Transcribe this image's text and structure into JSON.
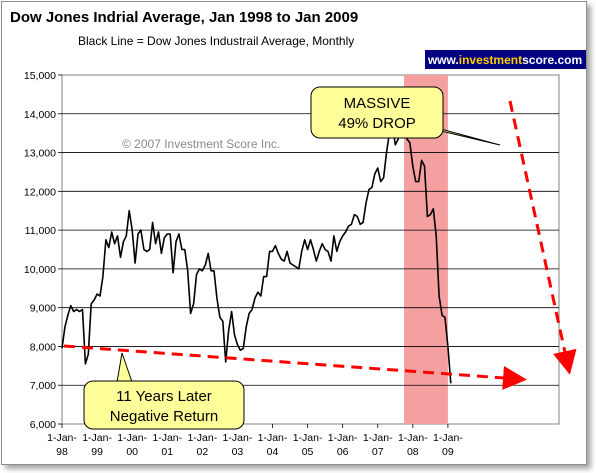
{
  "chart_data": {
    "type": "line",
    "title": "Dow Jones Indrial Average, Jan 1998 to Jan 2009",
    "subtitle": "Black Line = Dow Jones Industrail Average, Monthly",
    "xlabel": "",
    "ylabel": "",
    "ylim": [
      6000,
      15000
    ],
    "y_ticks": [
      "6,000",
      "7,000",
      "8,000",
      "9,000",
      "10,000",
      "11,000",
      "12,000",
      "13,000",
      "14,000",
      "15,000"
    ],
    "x_tick_labels": [
      [
        "1-Jan-",
        "98"
      ],
      [
        "1-Jan-",
        "99"
      ],
      [
        "1-Jan-",
        "00"
      ],
      [
        "1-Jan-",
        "01"
      ],
      [
        "1-Jan-",
        "02"
      ],
      [
        "1-Jan-",
        "03"
      ],
      [
        "1-Jan-",
        "04"
      ],
      [
        "1-Jan-",
        "05"
      ],
      [
        "1-Jan-",
        "06"
      ],
      [
        "1-Jan-",
        "07"
      ],
      [
        "1-Jan-",
        "08"
      ],
      [
        "1-Jan-",
        "09"
      ]
    ],
    "grid": "horizontal",
    "series": [
      {
        "color": "#000000",
        "x_start": "1998-01",
        "x_step": "month",
        "values": [
          7950,
          8500,
          8800,
          9050,
          8900,
          8950,
          8900,
          8950,
          7550,
          7800,
          9100,
          9200,
          9350,
          9300,
          9800,
          10750,
          10550,
          10950,
          10650,
          10850,
          10300,
          10700,
          10850,
          11500,
          11000,
          10150,
          10900,
          11000,
          10500,
          10450,
          10500,
          11200,
          10650,
          10950,
          10400,
          10800,
          10900,
          10900,
          9900,
          10700,
          10900,
          10500,
          10500,
          9950,
          8850,
          9100,
          9850,
          10000,
          9950,
          10100,
          10400,
          9950,
          9950,
          9250,
          8750,
          8650,
          7600,
          8400,
          8900,
          8300,
          8050,
          7900,
          7950,
          8500,
          8850,
          8950,
          9250,
          9400,
          9300,
          9800,
          9800,
          10450,
          10450,
          10600,
          10400,
          10250,
          10200,
          10450,
          10150,
          10100,
          10050,
          10000,
          10450,
          10750,
          10500,
          10750,
          10500,
          10200,
          10450,
          10650,
          10500,
          10450,
          10200,
          10850,
          10450,
          10700,
          10850,
          10950,
          11100,
          11150,
          11400,
          11350,
          11150,
          11200,
          11700,
          12050,
          12100,
          12450,
          12600,
          12250,
          12350,
          13000,
          13500,
          13700,
          13200,
          13350,
          13900,
          13950,
          13350,
          13250,
          12650,
          12250,
          12250,
          12800,
          12650,
          11350,
          11400,
          11550,
          10850,
          9300,
          8800,
          8750,
          8000,
          7050
        ]
      }
    ],
    "highlight_band": {
      "x_from": "2007-10",
      "x_to": "2009-01",
      "color": "#f4a0a0"
    },
    "annotations": {
      "callout_top": [
        "MASSIVE",
        "49% DROP"
      ],
      "callout_bottom": [
        "11 Years Later",
        "Negative Return"
      ],
      "copyright": "© 2007 Investment Score Inc.",
      "callout_fill": "#ffff99",
      "arrow_color": "#ff0000"
    }
  },
  "badge": {
    "prefix": "www.",
    "brand_a": "investment",
    "brand_b": "score",
    "suffix": ".com",
    "bg": "#00008b",
    "highlight": "#ffcc00"
  }
}
